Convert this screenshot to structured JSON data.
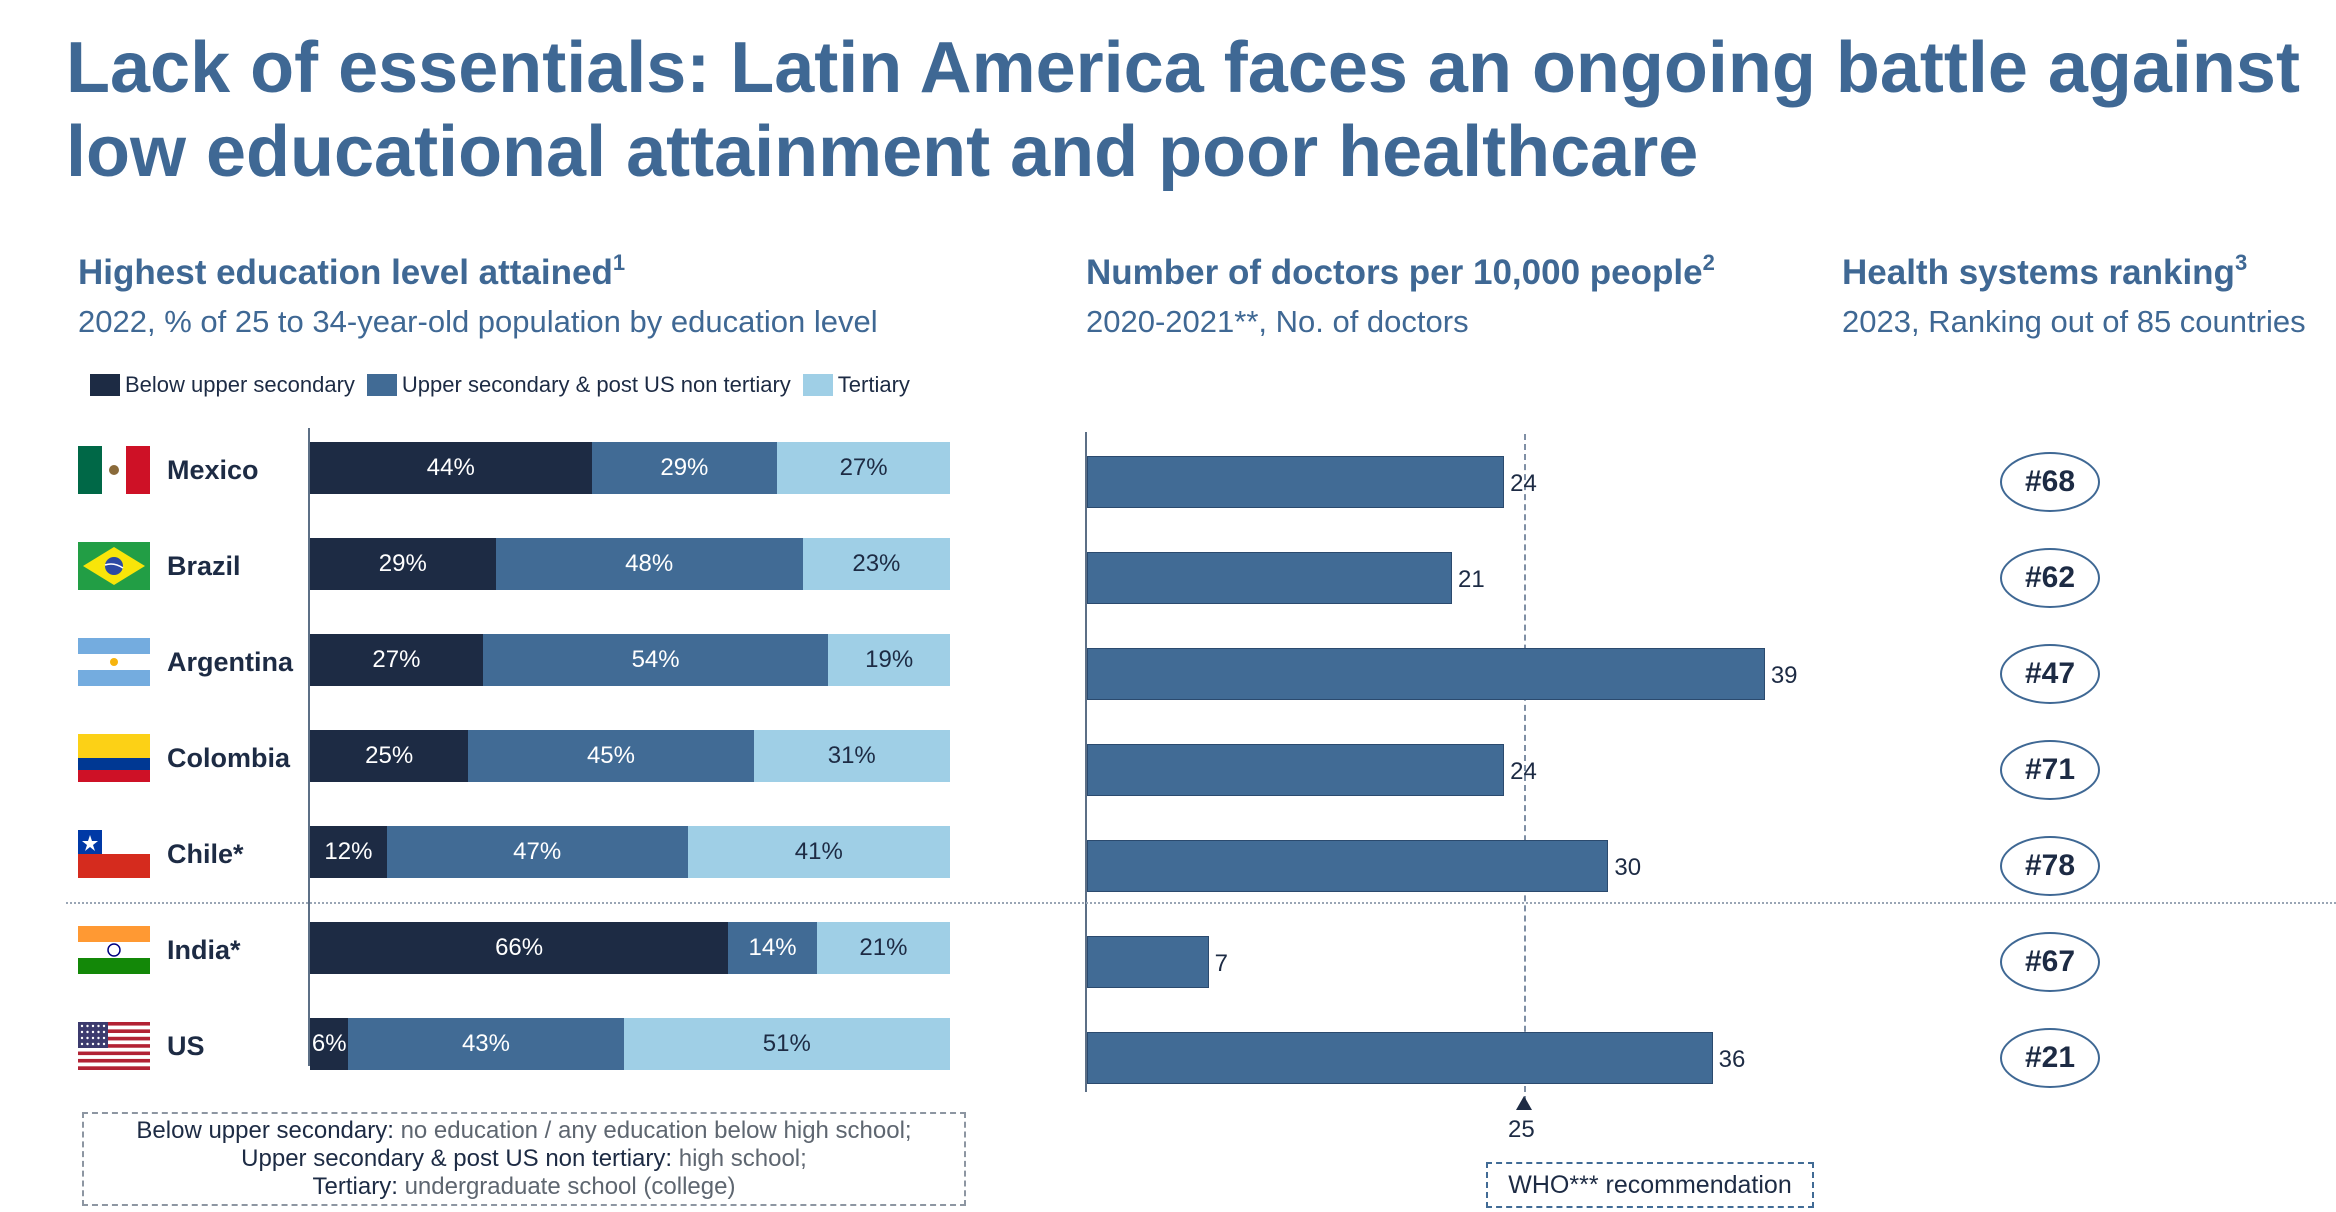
{
  "title": "Lack of essentials: Latin America faces an ongoing battle against low educational attainment and poor healthcare",
  "colors": {
    "title": "#3f6894",
    "below_upper_secondary": "#1d2b44",
    "upper_secondary": "#416b95",
    "tertiary": "#9fcfe6",
    "doctors_bar": "#416b95",
    "rank_border": "#3f6894"
  },
  "sections": {
    "education": {
      "title": "Highest education level attained",
      "footnote_mark": "1",
      "subtitle": "2022, % of 25 to 34-year-old population by education level"
    },
    "doctors": {
      "title": "Number of doctors per 10,000 people",
      "footnote_mark": "2",
      "subtitle": "2020-2021**, No. of doctors"
    },
    "ranking": {
      "title": "Health systems ranking",
      "footnote_mark": "3",
      "subtitle": "2023, Ranking out of 85 countries"
    }
  },
  "legend": {
    "below": "Below upper secondary",
    "upper": "Upper secondary & post US non tertiary",
    "tertiary": "Tertiary"
  },
  "countries": [
    {
      "name": "Mexico",
      "flag": "mexico-flag-icon"
    },
    {
      "name": "Brazil",
      "flag": "brazil-flag-icon"
    },
    {
      "name": "Argentina",
      "flag": "argentina-flag-icon"
    },
    {
      "name": "Colombia",
      "flag": "colombia-flag-icon"
    },
    {
      "name": "Chile*",
      "flag": "chile-flag-icon"
    },
    {
      "name": "India*",
      "flag": "india-flag-icon"
    },
    {
      "name": "US",
      "flag": "us-flag-icon"
    }
  ],
  "chart_data": [
    {
      "type": "bar",
      "orientation": "horizontal",
      "stacked": true,
      "title": "Highest education level attained",
      "categories": [
        "Mexico",
        "Brazil",
        "Argentina",
        "Colombia",
        "Chile*",
        "India*",
        "US"
      ],
      "series": [
        {
          "name": "Below upper secondary",
          "values": [
            44,
            29,
            27,
            25,
            12,
            66,
            6
          ],
          "labels": [
            "44%",
            "29%",
            "27%",
            "25%",
            "12%",
            "66%",
            "6%"
          ]
        },
        {
          "name": "Upper secondary & post US non tertiary",
          "values": [
            29,
            48,
            54,
            45,
            47,
            14,
            43
          ],
          "labels": [
            "29%",
            "48%",
            "54%",
            "45%",
            "47%",
            "14%",
            "43%"
          ]
        },
        {
          "name": "Tertiary",
          "values": [
            27,
            23,
            19,
            31,
            41,
            21,
            51
          ],
          "labels": [
            "27%",
            "23%",
            "19%",
            "31%",
            "41%",
            "21%",
            "51%"
          ]
        }
      ]
    },
    {
      "type": "bar",
      "orientation": "horizontal",
      "title": "Number of doctors per 10,000 people",
      "categories": [
        "Mexico",
        "Brazil",
        "Argentina",
        "Colombia",
        "Chile*",
        "India*",
        "US"
      ],
      "values": [
        24,
        21,
        39,
        24,
        30,
        7,
        36
      ],
      "labels": [
        "24",
        "21",
        "39",
        "24",
        "30",
        "7",
        "36"
      ],
      "reference_line": {
        "value": 25,
        "label": "25",
        "caption": "WHO*** recommendation"
      }
    },
    {
      "type": "table",
      "title": "Health systems ranking",
      "categories": [
        "Mexico",
        "Brazil",
        "Argentina",
        "Colombia",
        "Chile*",
        "India*",
        "US"
      ],
      "values": [
        "#68",
        "#62",
        "#47",
        "#71",
        "#78",
        "#67",
        "#21"
      ]
    }
  ],
  "footnote": {
    "lines": [
      {
        "term": "Below upper secondary:",
        "def": "no education / any education below high school;"
      },
      {
        "term": "Upper secondary & post US non tertiary:",
        "def": "high school;"
      },
      {
        "term": "Tertiary:",
        "def": "undergraduate school (college)"
      }
    ]
  }
}
